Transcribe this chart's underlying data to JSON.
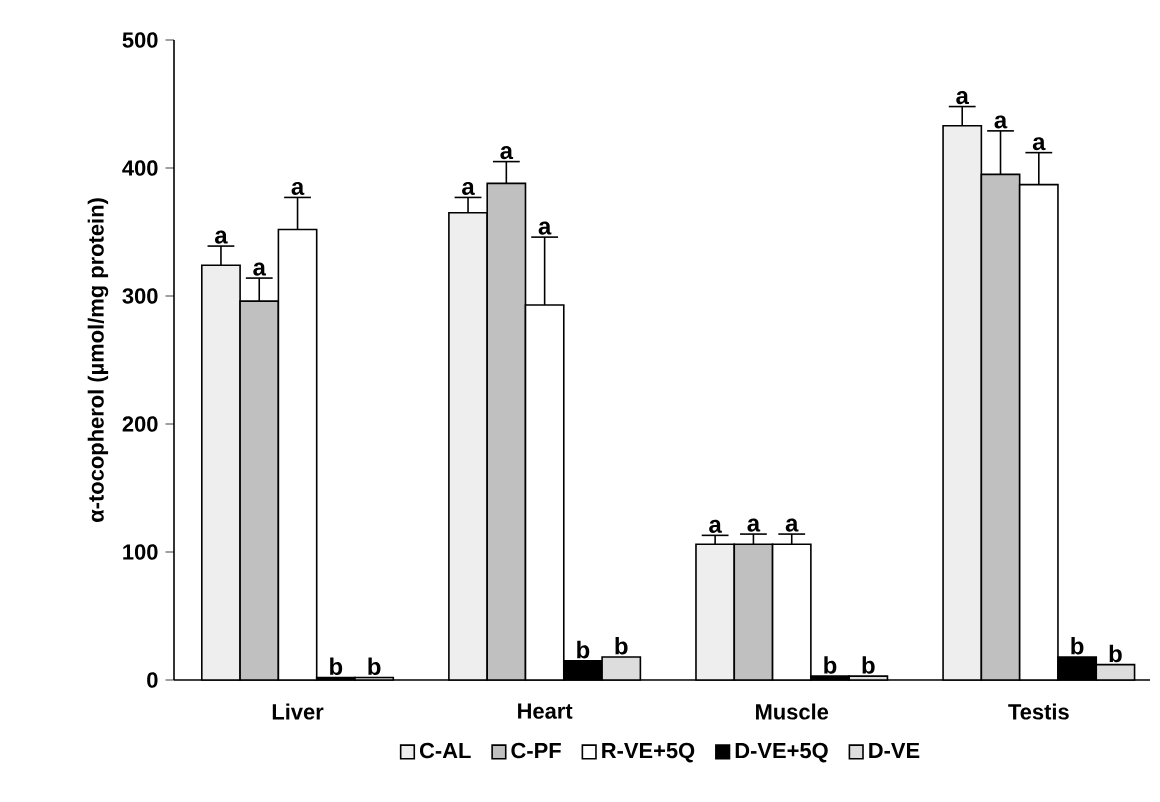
{
  "chart_data": {
    "type": "bar",
    "ylabel": "α-tocopherol (µmol/mg protein)",
    "categories": [
      "Liver",
      "Heart",
      "Muscle",
      "Testis"
    ],
    "series": [
      {
        "name": "C-AL",
        "color": "#eeeeee",
        "values": [
          324,
          365,
          106,
          433
        ],
        "errors": [
          15,
          12,
          7,
          15
        ]
      },
      {
        "name": "C-PF",
        "color": "#c0c0c0",
        "values": [
          296,
          388,
          106,
          395
        ],
        "errors": [
          18,
          17,
          8,
          34
        ]
      },
      {
        "name": "R-VE+5Q",
        "color": "#ffffff",
        "values": [
          352,
          293,
          106,
          387
        ],
        "errors": [
          25,
          53,
          8,
          25
        ]
      },
      {
        "name": "D-VE+5Q",
        "color": "#000000",
        "values": [
          2,
          15,
          3,
          18
        ]
      },
      {
        "name": "D-VE",
        "color": "#dddddd",
        "values": [
          2,
          18,
          3,
          12
        ]
      }
    ],
    "ylim": [
      0,
      500
    ],
    "yticks": [
      0,
      100,
      200,
      300,
      400,
      500
    ],
    "legend": "bottom",
    "annotations": [
      "a",
      "a",
      "a",
      "b",
      "b",
      "a",
      "a",
      "a",
      "b",
      "b",
      "a",
      "a",
      "a",
      "b",
      "b",
      "a",
      "a",
      "a",
      "b",
      "b"
    ]
  }
}
